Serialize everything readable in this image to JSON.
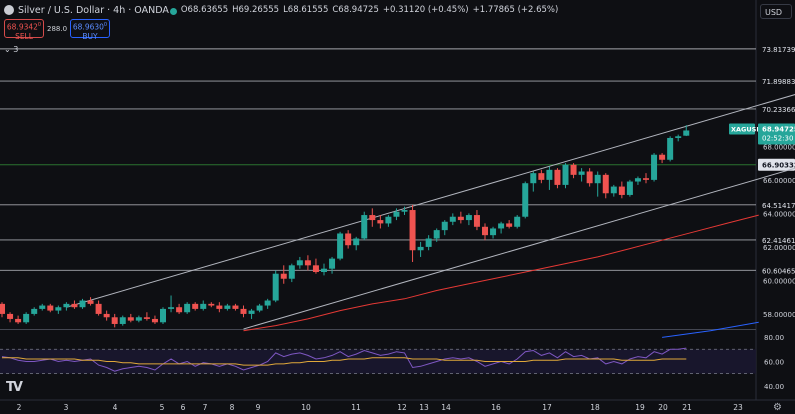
{
  "header": {
    "symbol": "Silver / U.S. Dollar · 4h · OANDA",
    "open": "O68.63655",
    "high": "H69.26555",
    "low": "L68.61555",
    "close": "C68.94725",
    "change": "+0.31120 (+0.45%)",
    "change2": "+1.77865 (+2.65%)"
  },
  "trade": {
    "sell_price": "68.9342",
    "sell_sup": "0",
    "sell_label": "SELL",
    "spread": "288.0",
    "buy_price": "68.9630",
    "buy_sup": "0",
    "buy_label": "BUY"
  },
  "indicators_toggle": "3",
  "currency": "USD",
  "colors": {
    "up": "#26a69a",
    "down": "#ef5350",
    "bg": "#0e0f13",
    "ma_red": "#e53935",
    "ma_blue": "#2962ff",
    "rsi": "#7e57c2",
    "rsi_ma": "#e0a83a"
  },
  "chart_data": {
    "type": "candlestick",
    "symbol_tag": "XAGUSD",
    "last_price": "68.94725",
    "countdown": "02:52:30",
    "price_ylim": [
      57.1,
      75.6
    ],
    "y_ticks": [
      "68.00000",
      "66.00000",
      "64.00000",
      "62.00000",
      "60.00000",
      "58.00000"
    ],
    "horizontal_levels": [
      {
        "label": "73.81739",
        "value": 73.81739
      },
      {
        "label": "71.89883",
        "value": 71.89883
      },
      {
        "label": "70.23366",
        "value": 70.23366
      },
      {
        "label": "66.90332",
        "value": 66.90332,
        "highlight": true
      },
      {
        "label": "64.51417",
        "value": 64.51417
      },
      {
        "label": "62.41461",
        "value": 62.41461
      },
      {
        "label": "60.60465",
        "value": 60.60465
      }
    ],
    "x_ticks": [
      "2",
      "3",
      "4",
      "5",
      "6",
      "7",
      "8",
      "9",
      "10",
      "11",
      "12",
      "13",
      "14",
      "16",
      "17",
      "18",
      "19",
      "20",
      "21",
      "23"
    ],
    "candles": [
      [
        58.6,
        58.7,
        57.8,
        58.0
      ],
      [
        58.0,
        58.1,
        57.5,
        57.7
      ],
      [
        57.7,
        57.9,
        57.4,
        57.5
      ],
      [
        57.5,
        58.1,
        57.4,
        58.0
      ],
      [
        58.0,
        58.4,
        57.9,
        58.3
      ],
      [
        58.3,
        58.6,
        58.2,
        58.5
      ],
      [
        58.5,
        58.6,
        58.1,
        58.2
      ],
      [
        58.2,
        58.5,
        58.0,
        58.4
      ],
      [
        58.4,
        58.7,
        58.2,
        58.6
      ],
      [
        58.6,
        58.8,
        58.3,
        58.4
      ],
      [
        58.4,
        58.9,
        58.3,
        58.8
      ],
      [
        58.8,
        59.0,
        58.5,
        58.6
      ],
      [
        58.6,
        58.8,
        57.9,
        58.0
      ],
      [
        58.0,
        58.2,
        57.6,
        57.8
      ],
      [
        57.8,
        58.0,
        57.2,
        57.4
      ],
      [
        57.4,
        57.9,
        57.3,
        57.8
      ],
      [
        57.8,
        58.0,
        57.5,
        57.6
      ],
      [
        57.6,
        57.9,
        57.5,
        57.8
      ],
      [
        57.8,
        58.1,
        57.6,
        57.7
      ],
      [
        57.7,
        57.9,
        57.4,
        57.5
      ],
      [
        57.5,
        58.4,
        57.4,
        58.3
      ],
      [
        58.3,
        59.1,
        58.1,
        58.4
      ],
      [
        58.4,
        58.6,
        58.0,
        58.1
      ],
      [
        58.1,
        58.7,
        58.0,
        58.6
      ],
      [
        58.6,
        58.7,
        58.2,
        58.3
      ],
      [
        58.3,
        58.8,
        58.2,
        58.6
      ],
      [
        58.6,
        58.7,
        58.4,
        58.5
      ],
      [
        58.5,
        58.7,
        58.1,
        58.3
      ],
      [
        58.3,
        58.6,
        58.2,
        58.5
      ],
      [
        58.5,
        58.6,
        58.2,
        58.3
      ],
      [
        58.3,
        58.5,
        57.8,
        58.0
      ],
      [
        58.0,
        58.3,
        57.7,
        58.2
      ],
      [
        58.2,
        58.6,
        58.1,
        58.5
      ],
      [
        58.5,
        58.9,
        58.3,
        58.8
      ],
      [
        58.8,
        60.6,
        58.7,
        60.4
      ],
      [
        60.4,
        60.9,
        59.8,
        60.1
      ],
      [
        60.1,
        61.0,
        59.9,
        60.9
      ],
      [
        60.9,
        61.4,
        60.7,
        61.2
      ],
      [
        61.2,
        61.5,
        60.6,
        60.9
      ],
      [
        60.9,
        61.3,
        60.4,
        60.5
      ],
      [
        60.5,
        61.0,
        60.3,
        60.7
      ],
      [
        60.7,
        61.4,
        60.4,
        61.3
      ],
      [
        61.3,
        62.9,
        61.2,
        62.8
      ],
      [
        62.8,
        63.0,
        61.9,
        62.1
      ],
      [
        62.1,
        62.6,
        61.8,
        62.5
      ],
      [
        62.5,
        64.1,
        62.4,
        63.9
      ],
      [
        63.9,
        64.3,
        63.2,
        63.6
      ],
      [
        63.6,
        63.9,
        63.1,
        63.4
      ],
      [
        63.4,
        63.9,
        63.2,
        63.8
      ],
      [
        63.8,
        64.3,
        63.6,
        64.1
      ],
      [
        64.1,
        64.4,
        63.9,
        64.2
      ],
      [
        64.2,
        64.5,
        61.1,
        61.8
      ],
      [
        61.8,
        62.3,
        61.4,
        62.0
      ],
      [
        62.0,
        62.7,
        61.8,
        62.5
      ],
      [
        62.5,
        63.1,
        62.3,
        63.0
      ],
      [
        63.0,
        63.6,
        62.7,
        63.5
      ],
      [
        63.5,
        64.0,
        63.3,
        63.8
      ],
      [
        63.8,
        64.1,
        63.4,
        63.6
      ],
      [
        63.6,
        64.0,
        63.3,
        63.9
      ],
      [
        63.9,
        64.2,
        63.0,
        63.2
      ],
      [
        63.2,
        63.4,
        62.4,
        62.7
      ],
      [
        62.7,
        63.2,
        62.5,
        63.1
      ],
      [
        63.1,
        63.5,
        62.8,
        63.4
      ],
      [
        63.4,
        63.6,
        63.1,
        63.2
      ],
      [
        63.2,
        63.9,
        63.1,
        63.8
      ],
      [
        63.8,
        65.9,
        63.7,
        65.8
      ],
      [
        65.8,
        66.5,
        65.3,
        66.4
      ],
      [
        66.4,
        66.6,
        65.8,
        66.0
      ],
      [
        66.0,
        66.8,
        65.4,
        66.6
      ],
      [
        66.6,
        66.7,
        65.5,
        65.7
      ],
      [
        65.7,
        67.0,
        65.5,
        66.9
      ],
      [
        66.9,
        67.0,
        66.1,
        66.3
      ],
      [
        66.3,
        66.7,
        65.9,
        66.5
      ],
      [
        66.5,
        66.7,
        65.6,
        65.8
      ],
      [
        65.8,
        66.5,
        65.0,
        66.3
      ],
      [
        66.3,
        66.4,
        64.9,
        65.2
      ],
      [
        65.2,
        65.7,
        65.0,
        65.6
      ],
      [
        65.6,
        65.9,
        64.9,
        65.1
      ],
      [
        65.1,
        66.0,
        65.0,
        65.9
      ],
      [
        65.9,
        66.2,
        65.7,
        66.1
      ],
      [
        66.1,
        66.4,
        65.8,
        66.0
      ],
      [
        66.0,
        67.6,
        65.9,
        67.5
      ],
      [
        67.5,
        67.6,
        67.0,
        67.2
      ],
      [
        67.2,
        68.6,
        67.1,
        68.5
      ],
      [
        68.5,
        68.7,
        68.3,
        68.6
      ],
      [
        68.63655,
        69.26555,
        68.61555,
        68.94725
      ]
    ],
    "ma_red": {
      "start_index": 30,
      "points": [
        [
          30,
          57.0
        ],
        [
          34,
          57.3
        ],
        [
          38,
          57.7
        ],
        [
          42,
          58.2
        ],
        [
          46,
          58.6
        ],
        [
          50,
          58.9
        ],
        [
          54,
          59.4
        ],
        [
          58,
          59.8
        ],
        [
          62,
          60.2
        ],
        [
          66,
          60.6
        ],
        [
          70,
          61.0
        ],
        [
          74,
          61.4
        ],
        [
          78,
          61.9
        ],
        [
          82,
          62.4
        ],
        [
          86,
          62.9
        ],
        [
          90,
          63.4
        ],
        [
          94,
          63.9
        ]
      ]
    },
    "ma_blue": {
      "points": [
        [
          82,
          56.6
        ],
        [
          88,
          57.0
        ],
        [
          94,
          57.5
        ]
      ]
    },
    "channel": {
      "upper": [
        [
          8,
          58.4
        ],
        [
          105,
          72.0
        ]
      ],
      "lower": [
        [
          30,
          57.1
        ],
        [
          105,
          67.6
        ]
      ]
    },
    "rsi": {
      "ticks": [
        "80.00",
        "60.00",
        "40.00"
      ],
      "ylim": [
        30,
        85
      ],
      "levels": [
        70,
        50
      ],
      "values": [
        64,
        63,
        61,
        60,
        60,
        61,
        62,
        60,
        61,
        60,
        61,
        62,
        57,
        55,
        52,
        54,
        55,
        56,
        55,
        53,
        58,
        62,
        58,
        60,
        56,
        59,
        58,
        56,
        58,
        56,
        53,
        55,
        57,
        60,
        67,
        64,
        66,
        67,
        65,
        62,
        63,
        65,
        68,
        64,
        66,
        69,
        67,
        65,
        66,
        68,
        67,
        55,
        56,
        58,
        60,
        62,
        63,
        62,
        63,
        60,
        56,
        58,
        60,
        58,
        62,
        68,
        69,
        65,
        67,
        63,
        68,
        64,
        65,
        62,
        63,
        58,
        60,
        58,
        62,
        64,
        63,
        68,
        66,
        70,
        70,
        71
      ],
      "ma": [
        63,
        63,
        63,
        62,
        62,
        62,
        62,
        62,
        62,
        62,
        61,
        61,
        61,
        60,
        60,
        59,
        59,
        58,
        58,
        58,
        58,
        58,
        58,
        58,
        58,
        58,
        58,
        58,
        58,
        58,
        57,
        57,
        57,
        57,
        58,
        58,
        59,
        59,
        60,
        60,
        60,
        61,
        61,
        62,
        62,
        62,
        63,
        63,
        63,
        63,
        63,
        62,
        62,
        62,
        62,
        61,
        61,
        61,
        61,
        61,
        60,
        60,
        60,
        60,
        60,
        60,
        61,
        61,
        61,
        61,
        62,
        62,
        62,
        62,
        62,
        62,
        62,
        61,
        61,
        61,
        61,
        61,
        62,
        62,
        62,
        62
      ]
    }
  }
}
